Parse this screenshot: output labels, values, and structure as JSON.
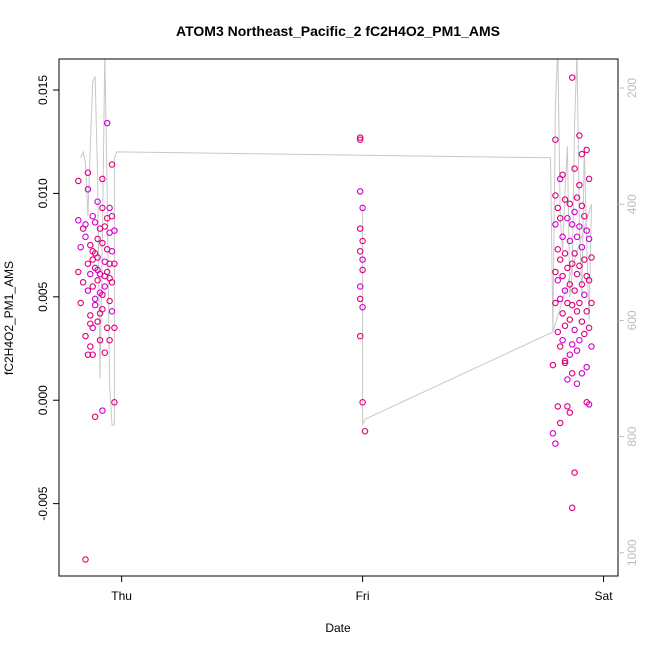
{
  "chart_data": {
    "type": "scatter",
    "title": "ATOM3 Northeast_Pacific_2 fC2H4O2_PM1_AMS",
    "xlabel": "Date",
    "ylabel": "fC2H4O2_PM1_AMS",
    "x_ticks": [
      {
        "day": 0,
        "label": "Thu"
      },
      {
        "day": 1,
        "label": "Fri"
      },
      {
        "day": 2,
        "label": "Sat"
      }
    ],
    "xlim": [
      -0.26,
      2.06
    ],
    "ylim": [
      -0.0085,
      0.0165
    ],
    "y_ticks": [
      -0.005,
      0.0,
      0.005,
      0.01,
      0.015
    ],
    "y_tick_labels": [
      "-0.005",
      "0.000",
      "0.005",
      "0.010",
      "0.015"
    ],
    "right_axis": {
      "ylim": [
        1040,
        150
      ],
      "ticks": [
        200,
        400,
        600,
        800,
        1000
      ],
      "tick_labels": [
        "200",
        "400",
        "600",
        "800",
        "1000"
      ],
      "color": "#bdbdbd"
    },
    "grid": false,
    "legend": "none",
    "series": [
      {
        "marker": "open-circle",
        "color_a": "#e0007a",
        "color_b": "#d000d0",
        "points": [
          [
            -0.18,
            0.0106
          ],
          [
            -0.18,
            0.0087
          ],
          [
            -0.18,
            0.0062
          ],
          [
            -0.17,
            0.0047
          ],
          [
            -0.17,
            0.0074
          ],
          [
            -0.16,
            0.0083
          ],
          [
            -0.16,
            0.0057
          ],
          [
            -0.15,
            0.0079
          ],
          [
            -0.15,
            0.0031
          ],
          [
            -0.15,
            -0.0077
          ],
          [
            -0.14,
            0.0102
          ],
          [
            -0.14,
            0.011
          ],
          [
            -0.14,
            0.0066
          ],
          [
            -0.14,
            0.0053
          ],
          [
            -0.14,
            0.0022
          ],
          [
            -0.13,
            0.0075
          ],
          [
            -0.13,
            0.0061
          ],
          [
            -0.13,
            0.0041
          ],
          [
            -0.13,
            0.0026
          ],
          [
            -0.12,
            0.0089
          ],
          [
            -0.12,
            0.0072
          ],
          [
            -0.12,
            0.0055
          ],
          [
            -0.12,
            0.0035
          ],
          [
            -0.12,
            0.0022
          ],
          [
            -0.11,
            0.0064
          ],
          [
            -0.11,
            0.0046
          ],
          [
            -0.11,
            0.0071
          ],
          [
            -0.11,
            -0.0008
          ],
          [
            -0.11,
            0.0086
          ],
          [
            -0.1,
            0.0058
          ],
          [
            -0.1,
            0.0078
          ],
          [
            -0.1,
            0.0096
          ],
          [
            -0.1,
            0.0038
          ],
          [
            -0.1,
            0.0069
          ],
          [
            -0.09,
            0.0052
          ],
          [
            -0.09,
            0.0083
          ],
          [
            -0.09,
            0.0029
          ],
          [
            -0.09,
            0.0061
          ],
          [
            -0.08,
            0.0093
          ],
          [
            -0.08,
            0.0076
          ],
          [
            -0.08,
            -0.0005
          ],
          [
            -0.08,
            0.0044
          ],
          [
            -0.08,
            0.0107
          ],
          [
            -0.07,
            0.0067
          ],
          [
            -0.07,
            0.0084
          ],
          [
            -0.07,
            0.0023
          ],
          [
            -0.07,
            0.0055
          ],
          [
            -0.06,
            0.0073
          ],
          [
            -0.06,
            0.0088
          ],
          [
            -0.06,
            0.0134
          ],
          [
            -0.06,
            0.0062
          ],
          [
            -0.06,
            0.0035
          ],
          [
            -0.05,
            0.0081
          ],
          [
            -0.05,
            0.0048
          ],
          [
            -0.05,
            0.0066
          ],
          [
            -0.05,
            0.0093
          ],
          [
            -0.05,
            0.0029
          ],
          [
            -0.04,
            0.0114
          ],
          [
            -0.04,
            0.0072
          ],
          [
            -0.04,
            0.0057
          ],
          [
            -0.04,
            0.0089
          ],
          [
            -0.04,
            0.0043
          ],
          [
            -0.03,
            0.0066
          ],
          [
            -0.03,
            0.0035
          ],
          [
            -0.03,
            0.0082
          ],
          [
            -0.03,
            -0.0001
          ],
          [
            -0.13,
            0.0037
          ],
          [
            -0.11,
            0.0049
          ],
          [
            -0.09,
            0.0042
          ],
          [
            -0.07,
            0.006
          ],
          [
            -0.15,
            0.0085
          ],
          [
            -0.05,
            0.0059
          ],
          [
            -0.12,
            0.0068
          ],
          [
            -0.1,
            0.0063
          ],
          [
            -0.08,
            0.0051
          ],
          [
            0.99,
            0.0127
          ],
          [
            0.99,
            0.0101
          ],
          [
            0.99,
            0.0083
          ],
          [
            0.99,
            0.0072
          ],
          [
            0.99,
            0.0055
          ],
          [
            0.99,
            0.0031
          ],
          [
            0.99,
            0.0126
          ],
          [
            1.0,
            0.0093
          ],
          [
            1.0,
            0.0077
          ],
          [
            1.0,
            0.0063
          ],
          [
            1.0,
            0.0045
          ],
          [
            1.0,
            -0.0001
          ],
          [
            1.01,
            -0.0015
          ],
          [
            1.0,
            0.0068
          ],
          [
            0.99,
            0.0049
          ],
          [
            1.79,
            0.0017
          ],
          [
            1.79,
            -0.0016
          ],
          [
            1.8,
            0.0126
          ],
          [
            1.8,
            0.0099
          ],
          [
            1.8,
            0.0085
          ],
          [
            1.8,
            0.0062
          ],
          [
            1.8,
            0.0047
          ],
          [
            1.8,
            -0.0021
          ],
          [
            1.81,
            0.0093
          ],
          [
            1.81,
            0.0073
          ],
          [
            1.81,
            0.0058
          ],
          [
            1.81,
            0.0033
          ],
          [
            1.81,
            -0.0003
          ],
          [
            1.82,
            0.0107
          ],
          [
            1.82,
            0.0088
          ],
          [
            1.82,
            0.0068
          ],
          [
            1.82,
            0.0049
          ],
          [
            1.82,
            -0.0011
          ],
          [
            1.83,
            0.0109
          ],
          [
            1.83,
            0.0079
          ],
          [
            1.83,
            0.006
          ],
          [
            1.83,
            0.0042
          ],
          [
            1.83,
            0.0029
          ],
          [
            1.84,
            0.0097
          ],
          [
            1.84,
            0.0071
          ],
          [
            1.84,
            0.0053
          ],
          [
            1.84,
            0.0036
          ],
          [
            1.84,
            0.0019
          ],
          [
            1.85,
            0.0088
          ],
          [
            1.85,
            0.0064
          ],
          [
            1.85,
            0.0047
          ],
          [
            1.85,
            0.001
          ],
          [
            1.85,
            -0.0003
          ],
          [
            1.86,
            0.0095
          ],
          [
            1.86,
            0.0077
          ],
          [
            1.86,
            0.0056
          ],
          [
            1.86,
            0.0039
          ],
          [
            1.86,
            0.0022
          ],
          [
            1.86,
            -0.0006
          ],
          [
            1.87,
            0.0156
          ],
          [
            1.87,
            0.0085
          ],
          [
            1.87,
            0.0066
          ],
          [
            1.87,
            0.0046
          ],
          [
            1.87,
            0.0027
          ],
          [
            1.87,
            -0.0052
          ],
          [
            1.88,
            0.0112
          ],
          [
            1.88,
            0.0091
          ],
          [
            1.88,
            0.0071
          ],
          [
            1.88,
            0.0053
          ],
          [
            1.88,
            0.0034
          ],
          [
            1.88,
            -0.0035
          ],
          [
            1.89,
            0.0098
          ],
          [
            1.89,
            0.0079
          ],
          [
            1.89,
            0.0061
          ],
          [
            1.89,
            0.0043
          ],
          [
            1.89,
            0.0024
          ],
          [
            1.9,
            0.0128
          ],
          [
            1.9,
            0.0104
          ],
          [
            1.9,
            0.0084
          ],
          [
            1.9,
            0.0065
          ],
          [
            1.9,
            0.0047
          ],
          [
            1.9,
            0.0029
          ],
          [
            1.91,
            0.0119
          ],
          [
            1.91,
            0.0094
          ],
          [
            1.91,
            0.0074
          ],
          [
            1.91,
            0.0056
          ],
          [
            1.91,
            0.0038
          ],
          [
            1.91,
            0.0013
          ],
          [
            1.92,
            0.0089
          ],
          [
            1.92,
            0.0068
          ],
          [
            1.92,
            0.0051
          ],
          [
            1.92,
            0.0032
          ],
          [
            1.93,
            0.0121
          ],
          [
            1.93,
            0.0082
          ],
          [
            1.93,
            0.006
          ],
          [
            1.93,
            0.0043
          ],
          [
            1.93,
            0.0016
          ],
          [
            1.93,
            -0.0001
          ],
          [
            1.94,
            0.0107
          ],
          [
            1.94,
            0.0078
          ],
          [
            1.94,
            0.0058
          ],
          [
            1.94,
            0.0035
          ],
          [
            1.94,
            -0.0002
          ],
          [
            1.95,
            0.0069
          ],
          [
            1.95,
            0.0047
          ],
          [
            1.95,
            0.0026
          ],
          [
            1.84,
            0.0018
          ],
          [
            1.87,
            0.0013
          ],
          [
            1.89,
            0.0008
          ],
          [
            1.82,
            0.0026
          ]
        ]
      }
    ],
    "line_series": {
      "axis": "right",
      "color": "#c8c8c8",
      "points": [
        [
          -0.17,
          320
        ],
        [
          -0.16,
          310
        ],
        [
          -0.15,
          330
        ],
        [
          -0.14,
          420
        ],
        [
          -0.13,
          300
        ],
        [
          -0.12,
          190
        ],
        [
          -0.11,
          180
        ],
        [
          -0.1,
          350
        ],
        [
          -0.09,
          700
        ],
        [
          -0.08,
          460
        ],
        [
          -0.07,
          140
        ],
        [
          -0.06,
          380
        ],
        [
          -0.05,
          710
        ],
        [
          -0.04,
          780
        ],
        [
          -0.03,
          780
        ],
        [
          -0.03,
          320
        ],
        [
          -0.02,
          310
        ],
        [
          1.78,
          320
        ],
        [
          1.79,
          620
        ],
        [
          1.8,
          230
        ],
        [
          1.81,
          130
        ],
        [
          1.82,
          420
        ],
        [
          1.83,
          480
        ],
        [
          1.84,
          380
        ],
        [
          1.85,
          300
        ],
        [
          1.86,
          560
        ],
        [
          1.87,
          520
        ],
        [
          1.88,
          260
        ],
        [
          1.89,
          140
        ],
        [
          1.9,
          440
        ],
        [
          1.91,
          560
        ],
        [
          1.92,
          300
        ],
        [
          1.93,
          470
        ],
        [
          1.94,
          600
        ],
        [
          1.95,
          400
        ],
        [
          1.79,
          620
        ],
        [
          1.01,
          770
        ],
        [
          1.0,
          780
        ],
        [
          1.0,
          400
        ],
        [
          1.0,
          430
        ]
      ]
    }
  }
}
